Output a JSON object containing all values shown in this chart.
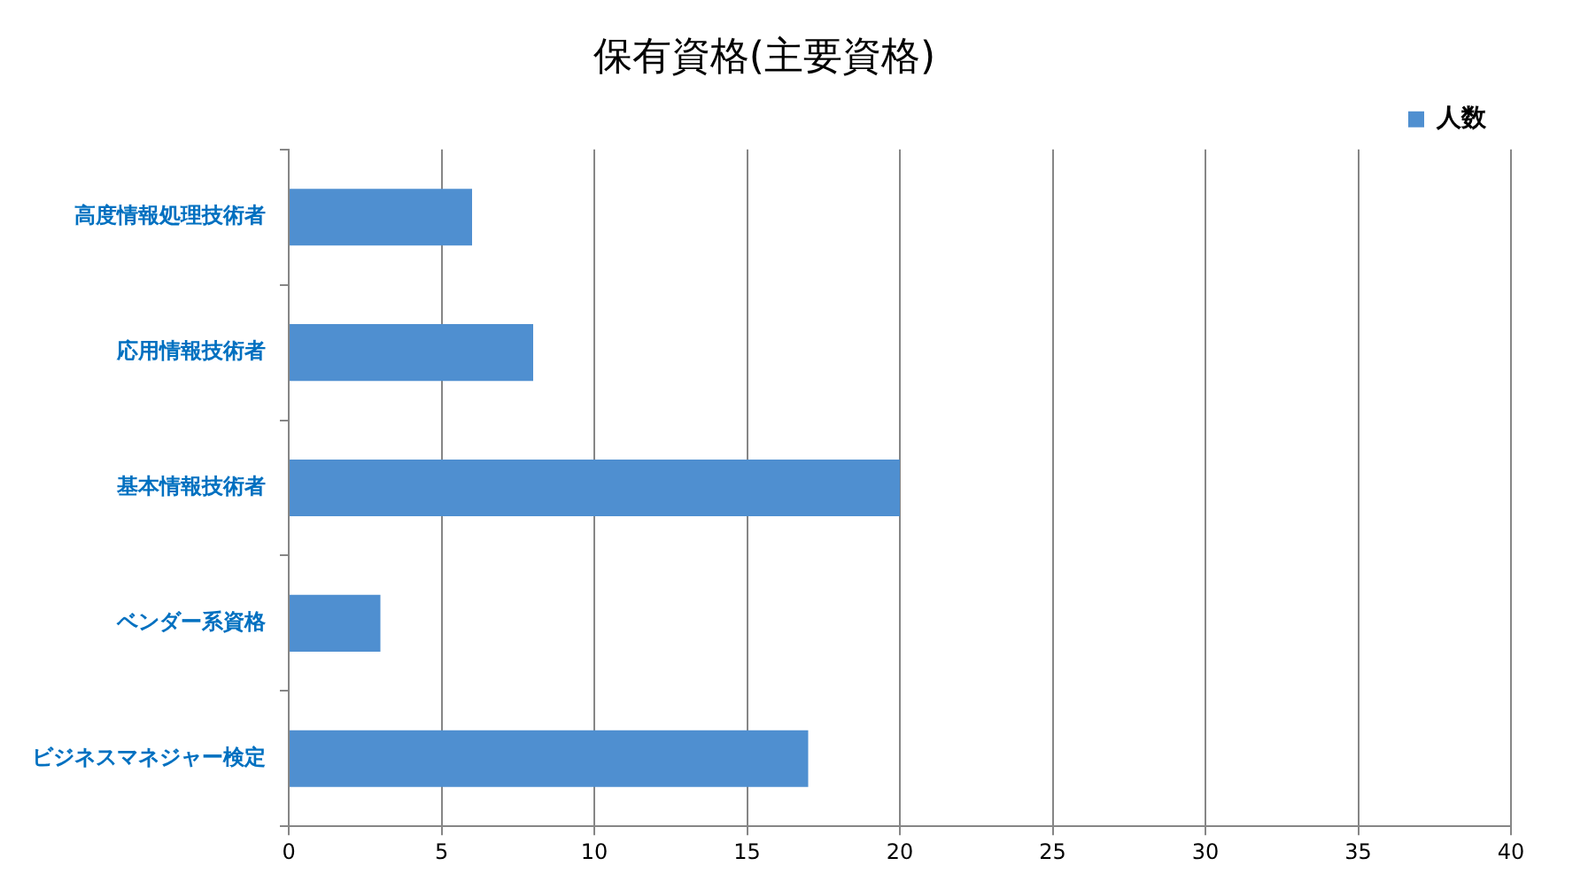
{
  "chart_data": {
    "type": "bar",
    "title": "保有資格(主要資格)",
    "orientation": "horizontal",
    "categories": [
      "高度情報処理技術者",
      "応用情報技術者",
      "基本情報技術者",
      "ベンダー系資格",
      "ビジネスマネジャー検定"
    ],
    "series": [
      {
        "name": "人数",
        "color": "#4f8fd0",
        "values": [
          6,
          8,
          20,
          3,
          17
        ]
      }
    ],
    "xlim": [
      0,
      40
    ],
    "xticks": [
      0,
      5,
      10,
      15,
      20,
      25,
      30,
      35,
      40
    ],
    "grid": "x",
    "legend": "top right"
  }
}
